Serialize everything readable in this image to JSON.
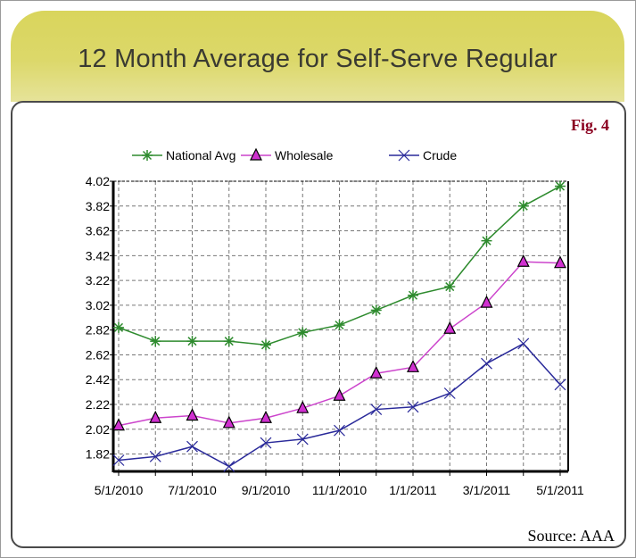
{
  "header": {
    "title": "12 Month Average for Self-Serve Regular"
  },
  "figure_label": "Fig. 4",
  "source_label": "Source: AAA",
  "chart_data": {
    "type": "line",
    "title": "12 Month Average for Self-Serve Regular",
    "xlabel": "",
    "ylabel": "",
    "x": [
      "5/1/2010",
      "6/1/2010",
      "7/1/2010",
      "8/1/2010",
      "9/1/2010",
      "10/1/2010",
      "11/1/2010",
      "12/1/2010",
      "1/1/2011",
      "2/1/2011",
      "3/1/2011",
      "4/1/2011",
      "5/1/2011"
    ],
    "x_tick_labels": [
      "5/1/2010",
      "7/1/2010",
      "9/1/2010",
      "11/1/2010",
      "1/1/2011",
      "3/1/2011",
      "5/1/2011"
    ],
    "y_tick_labels": [
      "4.02",
      "3.82",
      "3.62",
      "3.42",
      "3.22",
      "3.02",
      "2.82",
      "2.62",
      "2.42",
      "2.22",
      "2.02",
      "1.82"
    ],
    "ylim": [
      1.68,
      4.02
    ],
    "grid": true,
    "legend_position": "top-center",
    "series": [
      {
        "name": "National Avg",
        "color": "#2e8b2e",
        "marker": "asterisk",
        "values": [
          2.84,
          2.73,
          2.73,
          2.73,
          2.7,
          2.8,
          2.86,
          2.98,
          3.1,
          3.17,
          3.54,
          3.82,
          3.98
        ]
      },
      {
        "name": "Wholesale",
        "color": "#cc44cc",
        "marker": "triangle",
        "values": [
          2.05,
          2.11,
          2.13,
          2.07,
          2.11,
          2.19,
          2.29,
          2.47,
          2.52,
          2.83,
          3.04,
          3.37,
          3.36
        ]
      },
      {
        "name": "Crude",
        "color": "#2a2a9a",
        "marker": "x",
        "values": [
          1.77,
          1.8,
          1.88,
          1.72,
          1.91,
          1.94,
          2.01,
          2.18,
          2.2,
          2.31,
          2.55,
          2.71,
          2.38
        ]
      }
    ]
  }
}
